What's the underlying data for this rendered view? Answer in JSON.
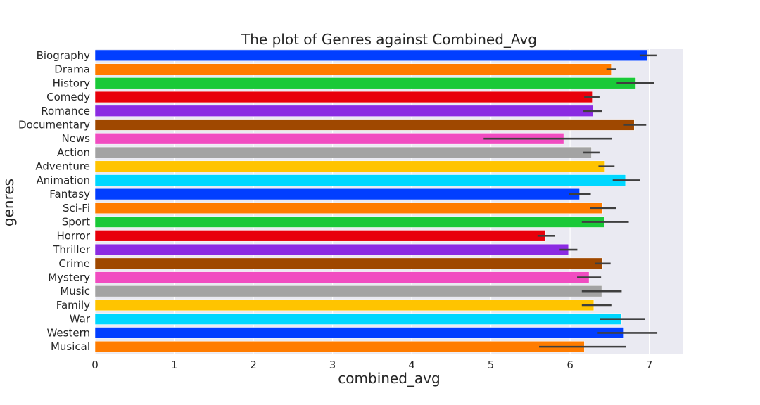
{
  "chart_data": {
    "type": "bar",
    "orientation": "horizontal",
    "title": "The plot of Genres against Combined_Avg",
    "xlabel": "combined_avg",
    "ylabel": "genres",
    "xlim": [
      0,
      7.43
    ],
    "xticks": [
      0,
      1,
      2,
      3,
      4,
      5,
      6,
      7
    ],
    "grid": true,
    "categories": [
      "Biography",
      "Drama",
      "History",
      "Comedy",
      "Romance",
      "Documentary",
      "News",
      "Action",
      "Adventure",
      "Animation",
      "Fantasy",
      "Sci-Fi",
      "Sport",
      "Horror",
      "Thriller",
      "Crime",
      "Mystery",
      "Music",
      "Family",
      "War",
      "Western",
      "Musical"
    ],
    "values": [
      6.97,
      6.52,
      6.83,
      6.28,
      6.29,
      6.81,
      5.92,
      6.27,
      6.44,
      6.7,
      6.12,
      6.41,
      6.43,
      5.69,
      5.98,
      6.41,
      6.24,
      6.4,
      6.3,
      6.65,
      6.68,
      6.18
    ],
    "error_low": [
      6.89,
      6.47,
      6.6,
      6.19,
      6.18,
      6.69,
      4.92,
      6.18,
      6.37,
      6.55,
      6.0,
      6.26,
      6.16,
      5.6,
      5.88,
      6.33,
      6.1,
      6.16,
      6.16,
      6.39,
      6.36,
      5.62
    ],
    "error_high": [
      7.08,
      6.57,
      7.05,
      6.36,
      6.39,
      6.95,
      6.52,
      6.36,
      6.55,
      6.87,
      6.25,
      6.57,
      6.73,
      5.8,
      6.08,
      6.5,
      6.38,
      6.64,
      6.51,
      6.93,
      7.09,
      6.69
    ],
    "colors": [
      "#023eff",
      "#ff7c00",
      "#1ac938",
      "#e8000b",
      "#8b2be2",
      "#9f4800",
      "#f14cc1",
      "#a3a3a3",
      "#ffc400",
      "#00d7ff"
    ]
  }
}
